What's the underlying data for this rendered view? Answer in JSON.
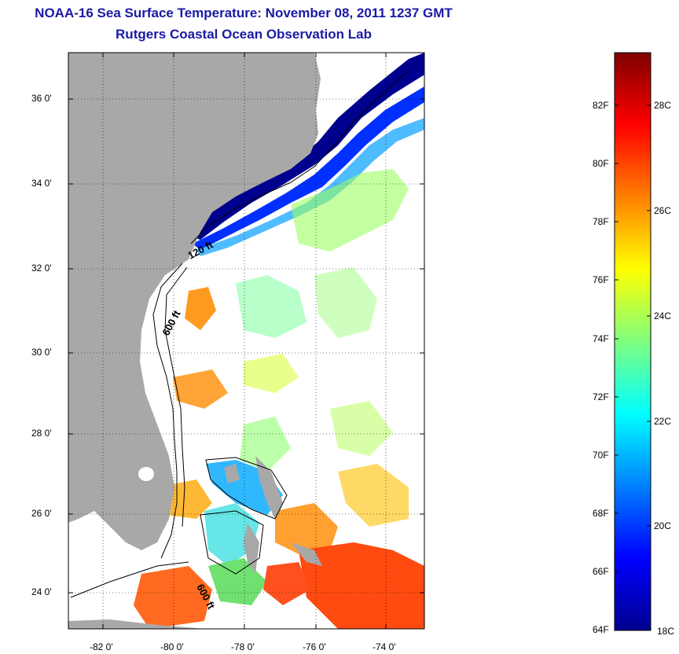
{
  "title": {
    "line1": "NOAA-16 Sea Surface Temperature:  November 08, 2011 1237 GMT",
    "line2": "Rutgers Coastal Ocean Observation Lab"
  },
  "map": {
    "lat_labels": [
      "36 0'",
      "34 0'",
      "32 0'",
      "30 0'",
      "28 0'",
      "26 0'",
      "24 0'"
    ],
    "lon_labels": [
      "-82 0'",
      "-80 0'",
      "-78 0'",
      "-76 0'",
      "-74 0'"
    ],
    "contours": [
      "120 ft",
      "600 ft",
      "600 ft"
    ],
    "colors": {
      "land": "#a8a8a8",
      "nodata": "#ffffff"
    }
  },
  "colorbar": {
    "f_labels": [
      "82F",
      "80F",
      "78F",
      "76F",
      "74F",
      "72F",
      "70F",
      "68F",
      "66F",
      "64F"
    ],
    "c_labels": [
      "28C",
      "26C",
      "24C",
      "22C",
      "20C",
      "18C"
    ],
    "colormap": "jet"
  }
}
